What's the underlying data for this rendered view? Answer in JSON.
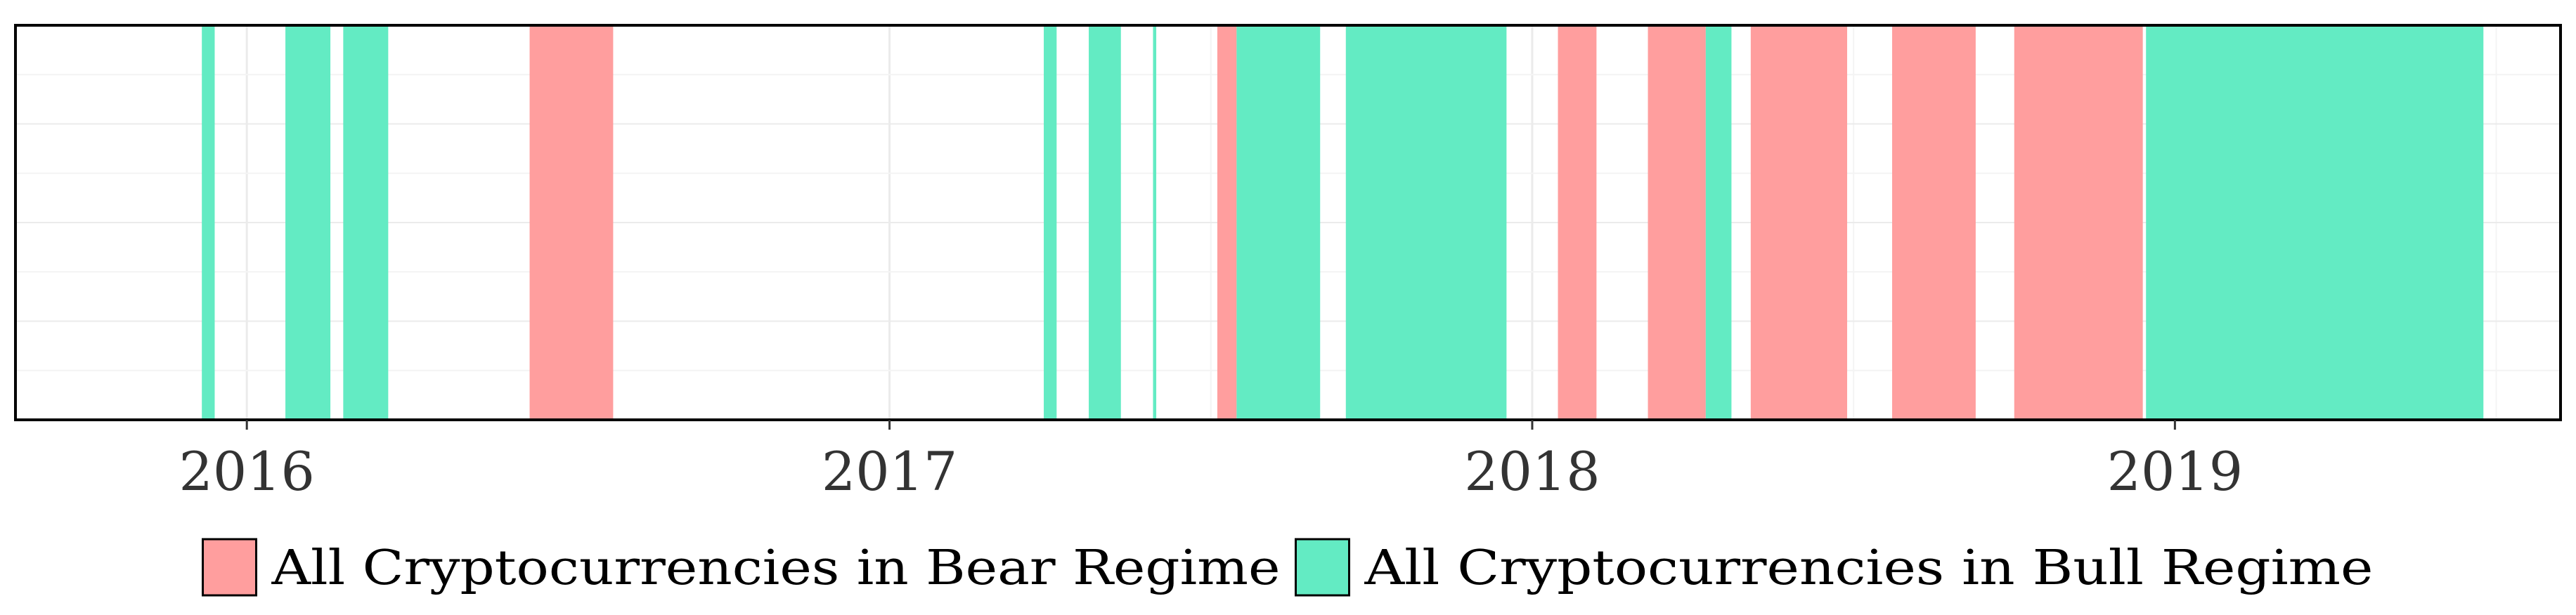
{
  "chart_data": {
    "type": "timeline",
    "title": "",
    "xlabel": "",
    "ylabel": "",
    "xlim": [
      2015.64,
      2019.6
    ],
    "x_ticks": [
      {
        "value": 2016,
        "label": "2016"
      },
      {
        "value": 2017,
        "label": "2017"
      },
      {
        "value": 2018,
        "label": "2018"
      },
      {
        "value": 2019,
        "label": "2019"
      }
    ],
    "grid": true,
    "legend_position": "bottom",
    "series": [
      {
        "name": "All Cryptocurrencies in Bear Regime",
        "color": "#FF9E9E",
        "intervals": [
          [
            2016.44,
            2016.57
          ],
          [
            2017.51,
            2017.54
          ],
          [
            2018.04,
            2018.1
          ],
          [
            2018.18,
            2018.27
          ],
          [
            2018.34,
            2018.49
          ],
          [
            2018.56,
            2018.69
          ],
          [
            2018.75,
            2018.95
          ]
        ]
      },
      {
        "name": "All Cryptocurrencies in Bull Regime",
        "color": "#63EBC3",
        "intervals": [
          [
            2015.93,
            2015.95
          ],
          [
            2016.06,
            2016.13
          ],
          [
            2016.15,
            2016.22
          ],
          [
            2017.24,
            2017.26
          ],
          [
            2017.31,
            2017.36
          ],
          [
            2017.41,
            2017.415
          ],
          [
            2017.54,
            2017.67
          ],
          [
            2017.71,
            2017.96
          ],
          [
            2018.27,
            2018.31
          ],
          [
            2018.955,
            2019.48
          ]
        ]
      }
    ]
  }
}
